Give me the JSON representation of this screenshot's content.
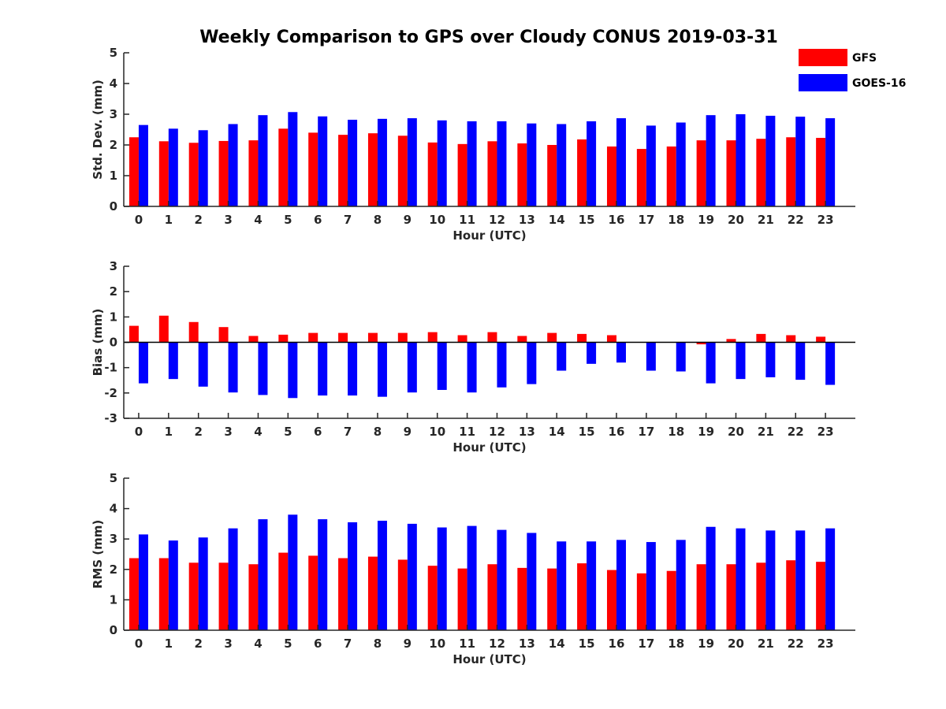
{
  "figure_title": "Weekly Comparison to GPS over Cloudy CONUS 2019-03-31",
  "legend": [
    {
      "name": "GFS",
      "color": "#ff0000"
    },
    {
      "name": "GOES-16",
      "color": "#0000ff"
    }
  ],
  "chart_data": [
    {
      "type": "bar",
      "ylabel": "Std. Dev. (mm)",
      "xlabel": "Hour (UTC)",
      "ylim": [
        0,
        5
      ],
      "yticks": [
        0,
        1,
        2,
        3,
        4,
        5
      ],
      "categories": [
        "0",
        "1",
        "2",
        "3",
        "4",
        "5",
        "6",
        "7",
        "8",
        "9",
        "10",
        "11",
        "12",
        "13",
        "14",
        "15",
        "16",
        "17",
        "18",
        "19",
        "20",
        "21",
        "22",
        "23"
      ],
      "series": [
        {
          "name": "GFS",
          "color": "#ff0000",
          "values": [
            2.25,
            2.12,
            2.07,
            2.13,
            2.15,
            2.53,
            2.4,
            2.33,
            2.38,
            2.3,
            2.08,
            2.03,
            2.12,
            2.05,
            2.0,
            2.18,
            1.95,
            1.87,
            1.95,
            2.15,
            2.15,
            2.2,
            2.25,
            2.23
          ]
        },
        {
          "name": "GOES-16",
          "color": "#0000ff",
          "values": [
            2.65,
            2.53,
            2.48,
            2.68,
            2.97,
            3.07,
            2.93,
            2.82,
            2.85,
            2.87,
            2.8,
            2.77,
            2.77,
            2.7,
            2.68,
            2.77,
            2.87,
            2.63,
            2.73,
            2.97,
            3.0,
            2.95,
            2.92,
            2.87
          ]
        }
      ]
    },
    {
      "type": "bar",
      "ylabel": "Bias (mm)",
      "xlabel": "Hour (UTC)",
      "ylim": [
        -3,
        3
      ],
      "yticks": [
        -3,
        -2,
        -1,
        0,
        1,
        2,
        3
      ],
      "categories": [
        "0",
        "1",
        "2",
        "3",
        "4",
        "5",
        "6",
        "7",
        "8",
        "9",
        "10",
        "11",
        "12",
        "13",
        "14",
        "15",
        "16",
        "17",
        "18",
        "19",
        "20",
        "21",
        "22",
        "23"
      ],
      "series": [
        {
          "name": "GFS",
          "color": "#ff0000",
          "values": [
            0.65,
            1.05,
            0.8,
            0.6,
            0.25,
            0.3,
            0.37,
            0.37,
            0.37,
            0.37,
            0.4,
            0.28,
            0.4,
            0.25,
            0.37,
            0.33,
            0.28,
            0.0,
            0.0,
            -0.08,
            0.13,
            0.33,
            0.28,
            0.22
          ]
        },
        {
          "name": "GOES-16",
          "color": "#0000ff",
          "values": [
            -1.62,
            -1.45,
            -1.75,
            -1.98,
            -2.08,
            -2.2,
            -2.1,
            -2.1,
            -2.15,
            -1.98,
            -1.88,
            -1.98,
            -1.78,
            -1.65,
            -1.12,
            -0.85,
            -0.8,
            -1.12,
            -1.15,
            -1.62,
            -1.45,
            -1.38,
            -1.48,
            -1.68
          ]
        }
      ]
    },
    {
      "type": "bar",
      "ylabel": "RMS (mm)",
      "xlabel": "Hour (UTC)",
      "ylim": [
        0,
        5
      ],
      "yticks": [
        0,
        1,
        2,
        3,
        4,
        5
      ],
      "categories": [
        "0",
        "1",
        "2",
        "3",
        "4",
        "5",
        "6",
        "7",
        "8",
        "9",
        "10",
        "11",
        "12",
        "13",
        "14",
        "15",
        "16",
        "17",
        "18",
        "19",
        "20",
        "21",
        "22",
        "23"
      ],
      "series": [
        {
          "name": "GFS",
          "color": "#ff0000",
          "values": [
            2.37,
            2.37,
            2.22,
            2.22,
            2.17,
            2.55,
            2.45,
            2.37,
            2.42,
            2.32,
            2.12,
            2.03,
            2.17,
            2.05,
            2.03,
            2.2,
            1.98,
            1.87,
            1.95,
            2.17,
            2.17,
            2.22,
            2.3,
            2.25
          ]
        },
        {
          "name": "GOES-16",
          "color": "#0000ff",
          "values": [
            3.15,
            2.95,
            3.05,
            3.35,
            3.65,
            3.8,
            3.65,
            3.55,
            3.6,
            3.5,
            3.38,
            3.43,
            3.3,
            3.2,
            2.92,
            2.92,
            2.97,
            2.9,
            2.97,
            3.4,
            3.35,
            3.28,
            3.28,
            3.35
          ]
        }
      ]
    }
  ]
}
